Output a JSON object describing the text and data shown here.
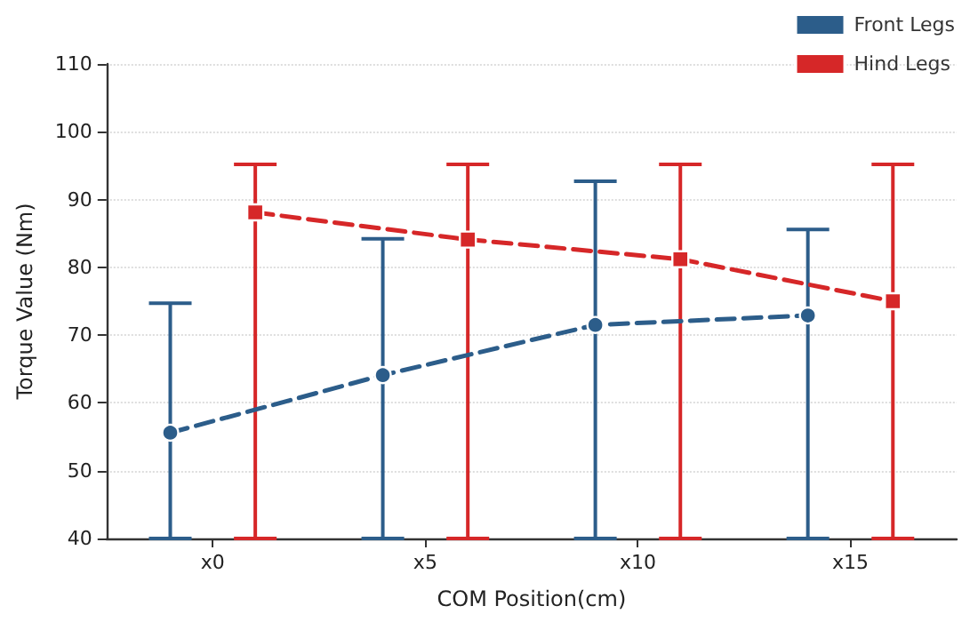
{
  "chart_data": {
    "type": "line",
    "xlabel": "COM Position(cm)",
    "ylabel": "Torque Value (Nm)",
    "categories": [
      "x0",
      "x5",
      "x10",
      "x15"
    ],
    "series": [
      {
        "name": "Front Legs",
        "color": "#2c5d8a",
        "marker": "circle",
        "values": [
          55.6,
          64.1,
          71.5,
          72.9
        ],
        "errors": [
          [
            40,
            74.7
          ],
          [
            40,
            84.2
          ],
          [
            40,
            92.7
          ],
          [
            40,
            85.6
          ]
        ]
      },
      {
        "name": "Hind Legs",
        "color": "#d62728",
        "marker": "square",
        "values": [
          88.1,
          84.1,
          81.2,
          75.0
        ],
        "errors": [
          [
            40,
            95.2
          ],
          [
            40,
            95.2
          ],
          [
            40,
            95.2
          ],
          [
            40,
            95.2
          ]
        ]
      }
    ],
    "ylim": [
      40,
      110
    ],
    "yticks": [
      40,
      50,
      60,
      70,
      80,
      90,
      100,
      110
    ],
    "grid": "y",
    "legend": "top right",
    "line_style": "dashed"
  }
}
